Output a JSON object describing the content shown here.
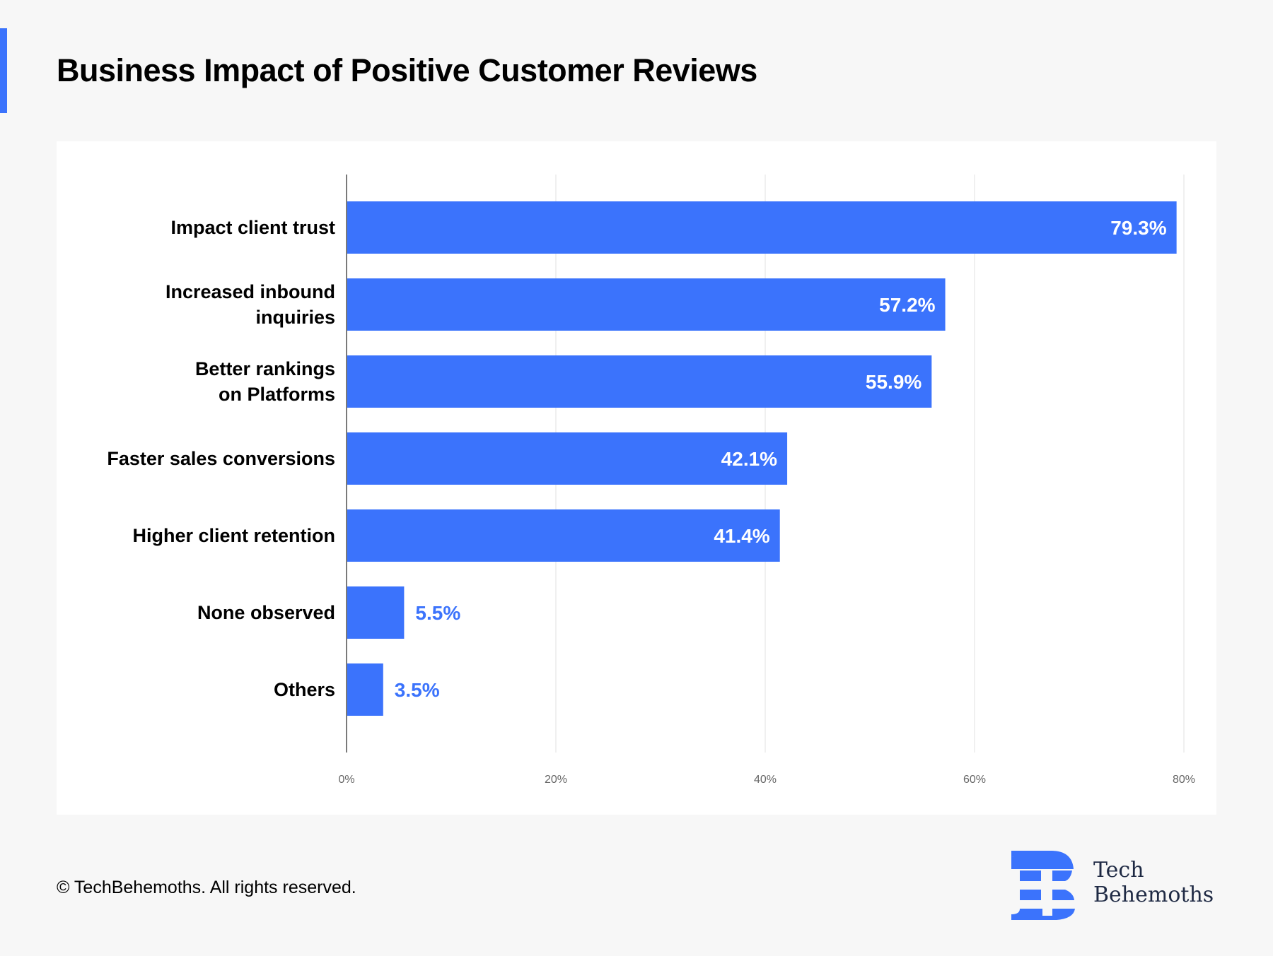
{
  "header": {
    "title": "Business Impact of Positive Customer Reviews",
    "accent_color": "#3b73fc"
  },
  "footer": {
    "copyright": "© TechBehemoths. All rights reserved.",
    "brand_line1": "Tech",
    "brand_line2": "Behemoths",
    "logo_icon": "techbehemoths-b-logo-icon"
  },
  "chart_data": {
    "type": "bar",
    "orientation": "horizontal",
    "title": "Business Impact of Positive Customer Reviews",
    "xlabel": "",
    "ylabel": "",
    "categories": [
      [
        "Impact client trust"
      ],
      [
        "Increased inbound",
        "inquiries"
      ],
      [
        "Better rankings",
        "on Platforms"
      ],
      [
        "Faster sales conversions"
      ],
      [
        "Higher client retention"
      ],
      [
        "None observed"
      ],
      [
        "Others"
      ]
    ],
    "values": [
      79.3,
      57.2,
      55.9,
      42.1,
      41.4,
      5.5,
      3.5
    ],
    "value_labels": [
      "79.3%",
      "57.2%",
      "55.9%",
      "42.1%",
      "41.4%",
      "5.5%",
      "3.5%"
    ],
    "xlim": [
      0,
      80
    ],
    "x_ticks": [
      0,
      20,
      40,
      60,
      80
    ],
    "x_tick_labels": [
      "0%",
      "20%",
      "40%",
      "60%",
      "80%"
    ],
    "grid": true,
    "legend": "none",
    "bar_color": "#3b73fc"
  }
}
